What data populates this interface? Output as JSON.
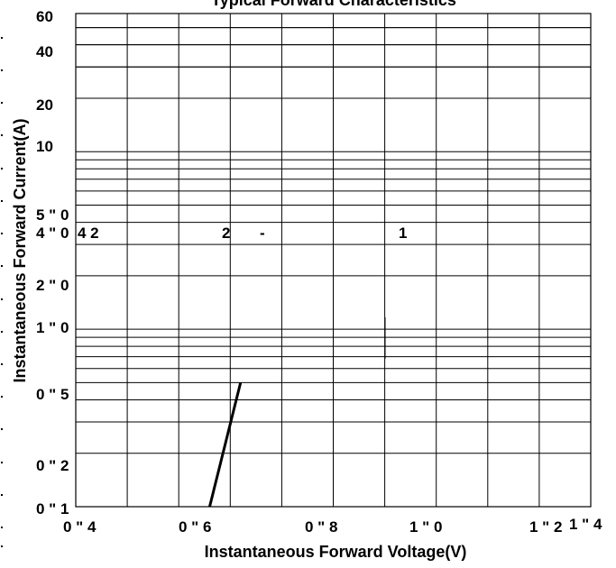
{
  "chart_data": {
    "type": "line",
    "title": "Typical Forward Characteristics",
    "xlabel": "Instantaneous Forward Voltage(V)",
    "ylabel": "Instantaneous Forward Current(A)",
    "x_tick_labels": [
      "0 \" 4",
      "0 \" 6",
      "0 \" 8",
      "1 \" 0",
      "1 \" 2",
      "1 \" 4"
    ],
    "y_tick_labels": [
      "60",
      "40",
      "20",
      "10",
      "5 \" 0",
      "4 \" 0",
      "2 \" 0",
      "1 \" 0",
      "0 \" 5",
      "0 \" 2",
      "0 \" 1"
    ],
    "y_scale": "log",
    "xlim": [
      0.4,
      1.4
    ],
    "ylim": [
      0.1,
      60
    ],
    "grid": true,
    "annotations": [
      "4 2",
      "2",
      "-",
      "1"
    ],
    "series": [
      {
        "x": [
          0.66,
          0.72
        ],
        "y": [
          0.1,
          0.5
        ]
      }
    ]
  }
}
